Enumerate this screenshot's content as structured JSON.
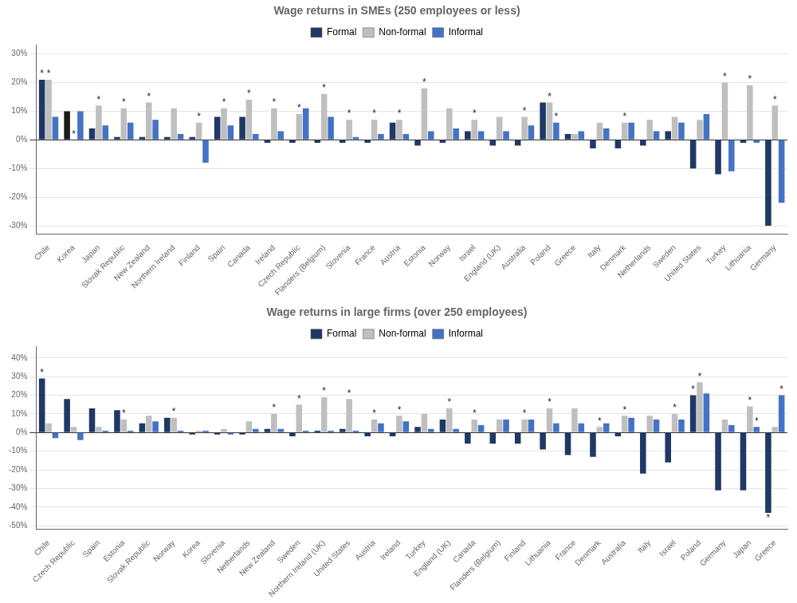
{
  "chart_data": [
    {
      "type": "bar",
      "title": "Wage returns in SMEs (250 employees or less)",
      "categories": [
        "Chile",
        "Korea",
        "Japan",
        "Slovak Republic",
        "New Zealand",
        "Northern Ireland",
        "Finland",
        "Spain",
        "Canada",
        "Ireland",
        "Czech Republic",
        "Flanders (Belgium)",
        "Slovenia",
        "France",
        "Austria",
        "Estonia",
        "Norway",
        "Israel",
        "England (UK)",
        "Australia",
        "Poland",
        "Greece",
        "Italy",
        "Denmark",
        "Netherlands",
        "Sweden",
        "United States",
        "Turkey",
        "Lithuania",
        "Germany"
      ],
      "series": [
        {
          "name": "Formal",
          "color": "#1F3864",
          "colors": [
            "#1F3864",
            "#1a1a1a",
            "#1F3864",
            "#1F3864",
            "#1F3864",
            "#1F3864",
            "#1F3864",
            "#1F3864",
            "#1F3864",
            "#1F3864",
            "#1F3864",
            "#1F3864",
            "#1F3864",
            "#1F3864",
            "#1F3864",
            "#1F3864",
            "#1F3864",
            "#1F3864",
            "#1F3864",
            "#1F3864",
            "#1F3864",
            "#1F3864",
            "#1F3864",
            "#1F3864",
            "#1F3864",
            "#1F3864",
            "#1F3864",
            "#1F3864",
            "#1F3864",
            "#1F3864"
          ],
          "values": [
            21,
            10,
            4,
            1,
            1,
            1,
            1,
            8,
            8,
            -1,
            -1,
            -1,
            -1,
            -1,
            6,
            -2,
            -1,
            3,
            -2,
            -2,
            13,
            2,
            -3,
            -3,
            -2,
            3,
            -10,
            -12,
            -1,
            -30
          ]
        },
        {
          "name": "Non-formal",
          "color": "#BFBFBF",
          "colors": [
            "#BFBFBF",
            "#FFFFFF",
            "#BFBFBF",
            "#BFBFBF",
            "#BFBFBF",
            "#BFBFBF",
            "#BFBFBF",
            "#BFBFBF",
            "#BFBFBF",
            "#BFBFBF",
            "#BFBFBF",
            "#BFBFBF",
            "#BFBFBF",
            "#BFBFBF",
            "#BFBFBF",
            "#BFBFBF",
            "#BFBFBF",
            "#BFBFBF",
            "#BFBFBF",
            "#BFBFBF",
            "#BFBFBF",
            "#BFBFBF",
            "#BFBFBF",
            "#BFBFBF",
            "#BFBFBF",
            "#BFBFBF",
            "#BFBFBF",
            "#BFBFBF",
            "#BFBFBF",
            "#BFBFBF"
          ],
          "values": [
            21,
            0,
            12,
            11,
            13,
            11,
            6,
            11,
            14,
            11,
            9,
            16,
            7,
            7,
            7,
            18,
            11,
            7,
            8,
            8,
            13,
            2,
            6,
            6,
            7,
            8,
            7,
            20,
            19,
            12
          ]
        },
        {
          "name": "Informal",
          "color": "#4472C4",
          "values": [
            8,
            10,
            5,
            6,
            7,
            2,
            -8,
            5,
            2,
            3,
            11,
            8,
            1,
            2,
            2,
            3,
            4,
            3,
            3,
            5,
            6,
            3,
            4,
            6,
            3,
            6,
            9,
            -11,
            -1,
            -22
          ]
        }
      ],
      "ylim": [
        -33,
        33
      ],
      "yticks": [
        {
          "value": -30,
          "label": "-30%"
        },
        {
          "value": -20,
          "label": "-20%"
        },
        {
          "value": -10,
          "label": "-10%"
        },
        {
          "value": 0,
          "label": "0%"
        },
        {
          "value": 10,
          "label": "10%"
        },
        {
          "value": 20,
          "label": "20%"
        },
        {
          "value": 30,
          "label": "30%"
        }
      ],
      "grid": true,
      "legend": "top",
      "annotations": [
        {
          "text": "*",
          "category": "Chile",
          "series": "Formal"
        },
        {
          "text": "*",
          "category": "Chile",
          "series": "Non-formal"
        },
        {
          "text": "*",
          "category": "Korea",
          "series": "Non-formal"
        },
        {
          "text": "*",
          "category": "Japan",
          "series": "Non-formal"
        },
        {
          "text": "*",
          "category": "Slovak Republic",
          "series": "Non-formal"
        },
        {
          "text": "*",
          "category": "New Zealand",
          "series": "Non-formal"
        },
        {
          "text": "*",
          "category": "Finland",
          "series": "Non-formal"
        },
        {
          "text": "*",
          "category": "Spain",
          "series": "Non-formal"
        },
        {
          "text": "*",
          "category": "Canada",
          "series": "Non-formal"
        },
        {
          "text": "*",
          "category": "Ireland",
          "series": "Non-formal"
        },
        {
          "text": "*",
          "category": "Czech Republic",
          "series": "Non-formal"
        },
        {
          "text": "*",
          "category": "Flanders (Belgium)",
          "series": "Non-formal"
        },
        {
          "text": "*",
          "category": "Slovenia",
          "series": "Non-formal"
        },
        {
          "text": "*",
          "category": "France",
          "series": "Non-formal"
        },
        {
          "text": "*",
          "category": "Austria",
          "series": "Non-formal"
        },
        {
          "text": "*",
          "category": "Estonia",
          "series": "Non-formal"
        },
        {
          "text": "*",
          "category": "Israel",
          "series": "Non-formal"
        },
        {
          "text": "*",
          "category": "Australia",
          "series": "Non-formal"
        },
        {
          "text": "*",
          "category": "Poland",
          "series": "Non-formal"
        },
        {
          "text": "*",
          "category": "Denmark",
          "series": "Non-formal"
        },
        {
          "text": "*",
          "category": "Turkey",
          "series": "Non-formal"
        },
        {
          "text": "*",
          "category": "Lithuania",
          "series": "Non-formal"
        },
        {
          "text": "*",
          "category": "Germany",
          "series": "Non-formal"
        },
        {
          "text": "*",
          "category": "Poland",
          "series": "Informal"
        }
      ]
    },
    {
      "type": "bar",
      "title": "Wage returns in large firms (over 250 employees)",
      "categories": [
        "Chile",
        "Czech Republic",
        "Spain",
        "Estonia",
        "Slovak Republic",
        "Norway",
        "Korea",
        "Slovenia",
        "Netherlands",
        "New Zealand",
        "Sweden",
        "Northern Ireland (UK)",
        "United States",
        "Austria",
        "Ireland",
        "Turkey",
        "England (UK)",
        "Canada",
        "Flanders (Belgium)",
        "Finland",
        "Lithuania",
        "France",
        "Denmark",
        "Australia",
        "Italy",
        "Israel",
        "Poland",
        "Germany",
        "Japan",
        "Greece"
      ],
      "series": [
        {
          "name": "Formal",
          "color": "#1F3864",
          "values": [
            29,
            18,
            13,
            12,
            5,
            8,
            -1,
            -1,
            -1,
            2,
            -2,
            1,
            2,
            -2,
            -2,
            3,
            7,
            -6,
            -6,
            -6,
            -9,
            -12,
            -13,
            -2,
            -22,
            -16,
            20,
            -31,
            -31,
            -43
          ]
        },
        {
          "name": "Non-formal",
          "color": "#BFBFBF",
          "values": [
            5,
            3,
            3,
            7,
            9,
            8,
            1,
            2,
            6,
            10,
            15,
            19,
            18,
            7,
            9,
            10,
            13,
            7,
            7,
            7,
            13,
            13,
            3,
            9,
            9,
            10,
            27,
            7,
            14,
            3
          ]
        },
        {
          "name": "Informal",
          "color": "#4472C4",
          "values": [
            -3,
            -4,
            1,
            1,
            6,
            1,
            1,
            -1,
            2,
            2,
            1,
            1,
            1,
            5,
            6,
            2,
            2,
            4,
            7,
            7,
            5,
            5,
            5,
            8,
            7,
            7,
            21,
            4,
            3,
            20
          ]
        }
      ],
      "ylim": [
        -52,
        46
      ],
      "yticks": [
        {
          "value": -50,
          "label": "-50%"
        },
        {
          "value": -40,
          "label": "-40%"
        },
        {
          "value": -30,
          "label": "-30%"
        },
        {
          "value": -20,
          "label": "-20%"
        },
        {
          "value": -10,
          "label": "-10%"
        },
        {
          "value": 0,
          "label": "0%"
        },
        {
          "value": 10,
          "label": "10%"
        },
        {
          "value": 20,
          "label": "20%"
        },
        {
          "value": 30,
          "label": "30%"
        },
        {
          "value": 40,
          "label": "40%"
        }
      ],
      "grid": true,
      "legend": "top",
      "annotations": [
        {
          "text": "*",
          "category": "Chile",
          "series": "Formal"
        },
        {
          "text": "*",
          "category": "Poland",
          "series": "Formal"
        },
        {
          "text": "*",
          "category": "Greece",
          "series": "Formal"
        },
        {
          "text": "*",
          "category": "Estonia",
          "series": "Non-formal"
        },
        {
          "text": "*",
          "category": "Norway",
          "series": "Non-formal"
        },
        {
          "text": "*",
          "category": "New Zealand",
          "series": "Non-formal"
        },
        {
          "text": "*",
          "category": "Sweden",
          "series": "Non-formal"
        },
        {
          "text": "*",
          "category": "Northern Ireland (UK)",
          "series": "Non-formal"
        },
        {
          "text": "*",
          "category": "United States",
          "series": "Non-formal"
        },
        {
          "text": "*",
          "category": "Austria",
          "series": "Non-formal"
        },
        {
          "text": "*",
          "category": "Ireland",
          "series": "Non-formal"
        },
        {
          "text": "*",
          "category": "England (UK)",
          "series": "Non-formal"
        },
        {
          "text": "*",
          "category": "Canada",
          "series": "Non-formal"
        },
        {
          "text": "*",
          "category": "Finland",
          "series": "Non-formal"
        },
        {
          "text": "*",
          "category": "Lithuania",
          "series": "Non-formal"
        },
        {
          "text": "*",
          "category": "Denmark",
          "series": "Non-formal"
        },
        {
          "text": "*",
          "category": "Australia",
          "series": "Non-formal"
        },
        {
          "text": "*",
          "category": "Israel",
          "series": "Non-formal"
        },
        {
          "text": "*",
          "category": "Poland",
          "series": "Non-formal"
        },
        {
          "text": "*",
          "category": "Japan",
          "series": "Non-formal"
        },
        {
          "text": "*",
          "category": "Japan",
          "series": "Informal"
        },
        {
          "text": "*",
          "category": "Greece",
          "series": "Informal"
        }
      ]
    }
  ]
}
